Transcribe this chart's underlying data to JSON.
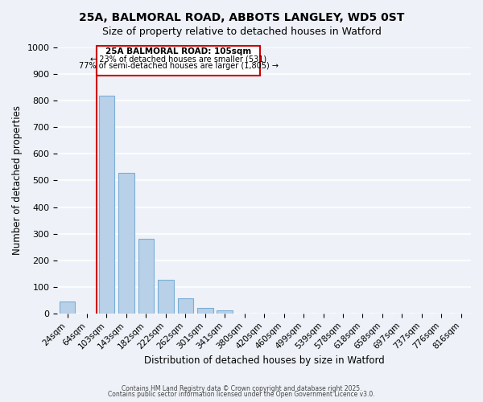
{
  "title_line1": "25A, BALMORAL ROAD, ABBOTS LANGLEY, WD5 0ST",
  "title_line2": "Size of property relative to detached houses in Watford",
  "xlabel": "Distribution of detached houses by size in Watford",
  "ylabel": "Number of detached properties",
  "bar_color": "#b8d0e8",
  "bar_edge_color": "#7aaed6",
  "background_color": "#eef2f8",
  "grid_color": "#ffffff",
  "categories": [
    "24sqm",
    "64sqm",
    "103sqm",
    "143sqm",
    "182sqm",
    "222sqm",
    "262sqm",
    "301sqm",
    "341sqm",
    "380sqm",
    "420sqm",
    "460sqm",
    "499sqm",
    "539sqm",
    "578sqm",
    "618sqm",
    "658sqm",
    "697sqm",
    "737sqm",
    "776sqm",
    "816sqm"
  ],
  "values": [
    46,
    0,
    820,
    530,
    280,
    127,
    57,
    22,
    12,
    0,
    0,
    0,
    0,
    0,
    0,
    0,
    0,
    0,
    0,
    0,
    0
  ],
  "ylim": [
    0,
    1000
  ],
  "yticks": [
    0,
    100,
    200,
    300,
    400,
    500,
    600,
    700,
    800,
    900,
    1000
  ],
  "annotation_title": "25A BALMORAL ROAD: 105sqm",
  "annotation_line1": "← 23% of detached houses are smaller (531)",
  "annotation_line2": "77% of semi-detached houses are larger (1,805) →",
  "annotation_box_color": "#ffffff",
  "annotation_box_edge_color": "#cc0000",
  "property_line_color": "#cc0000",
  "footer_line1": "Contains HM Land Registry data © Crown copyright and database right 2025.",
  "footer_line2": "Contains public sector information licensed under the Open Government Licence v3.0."
}
